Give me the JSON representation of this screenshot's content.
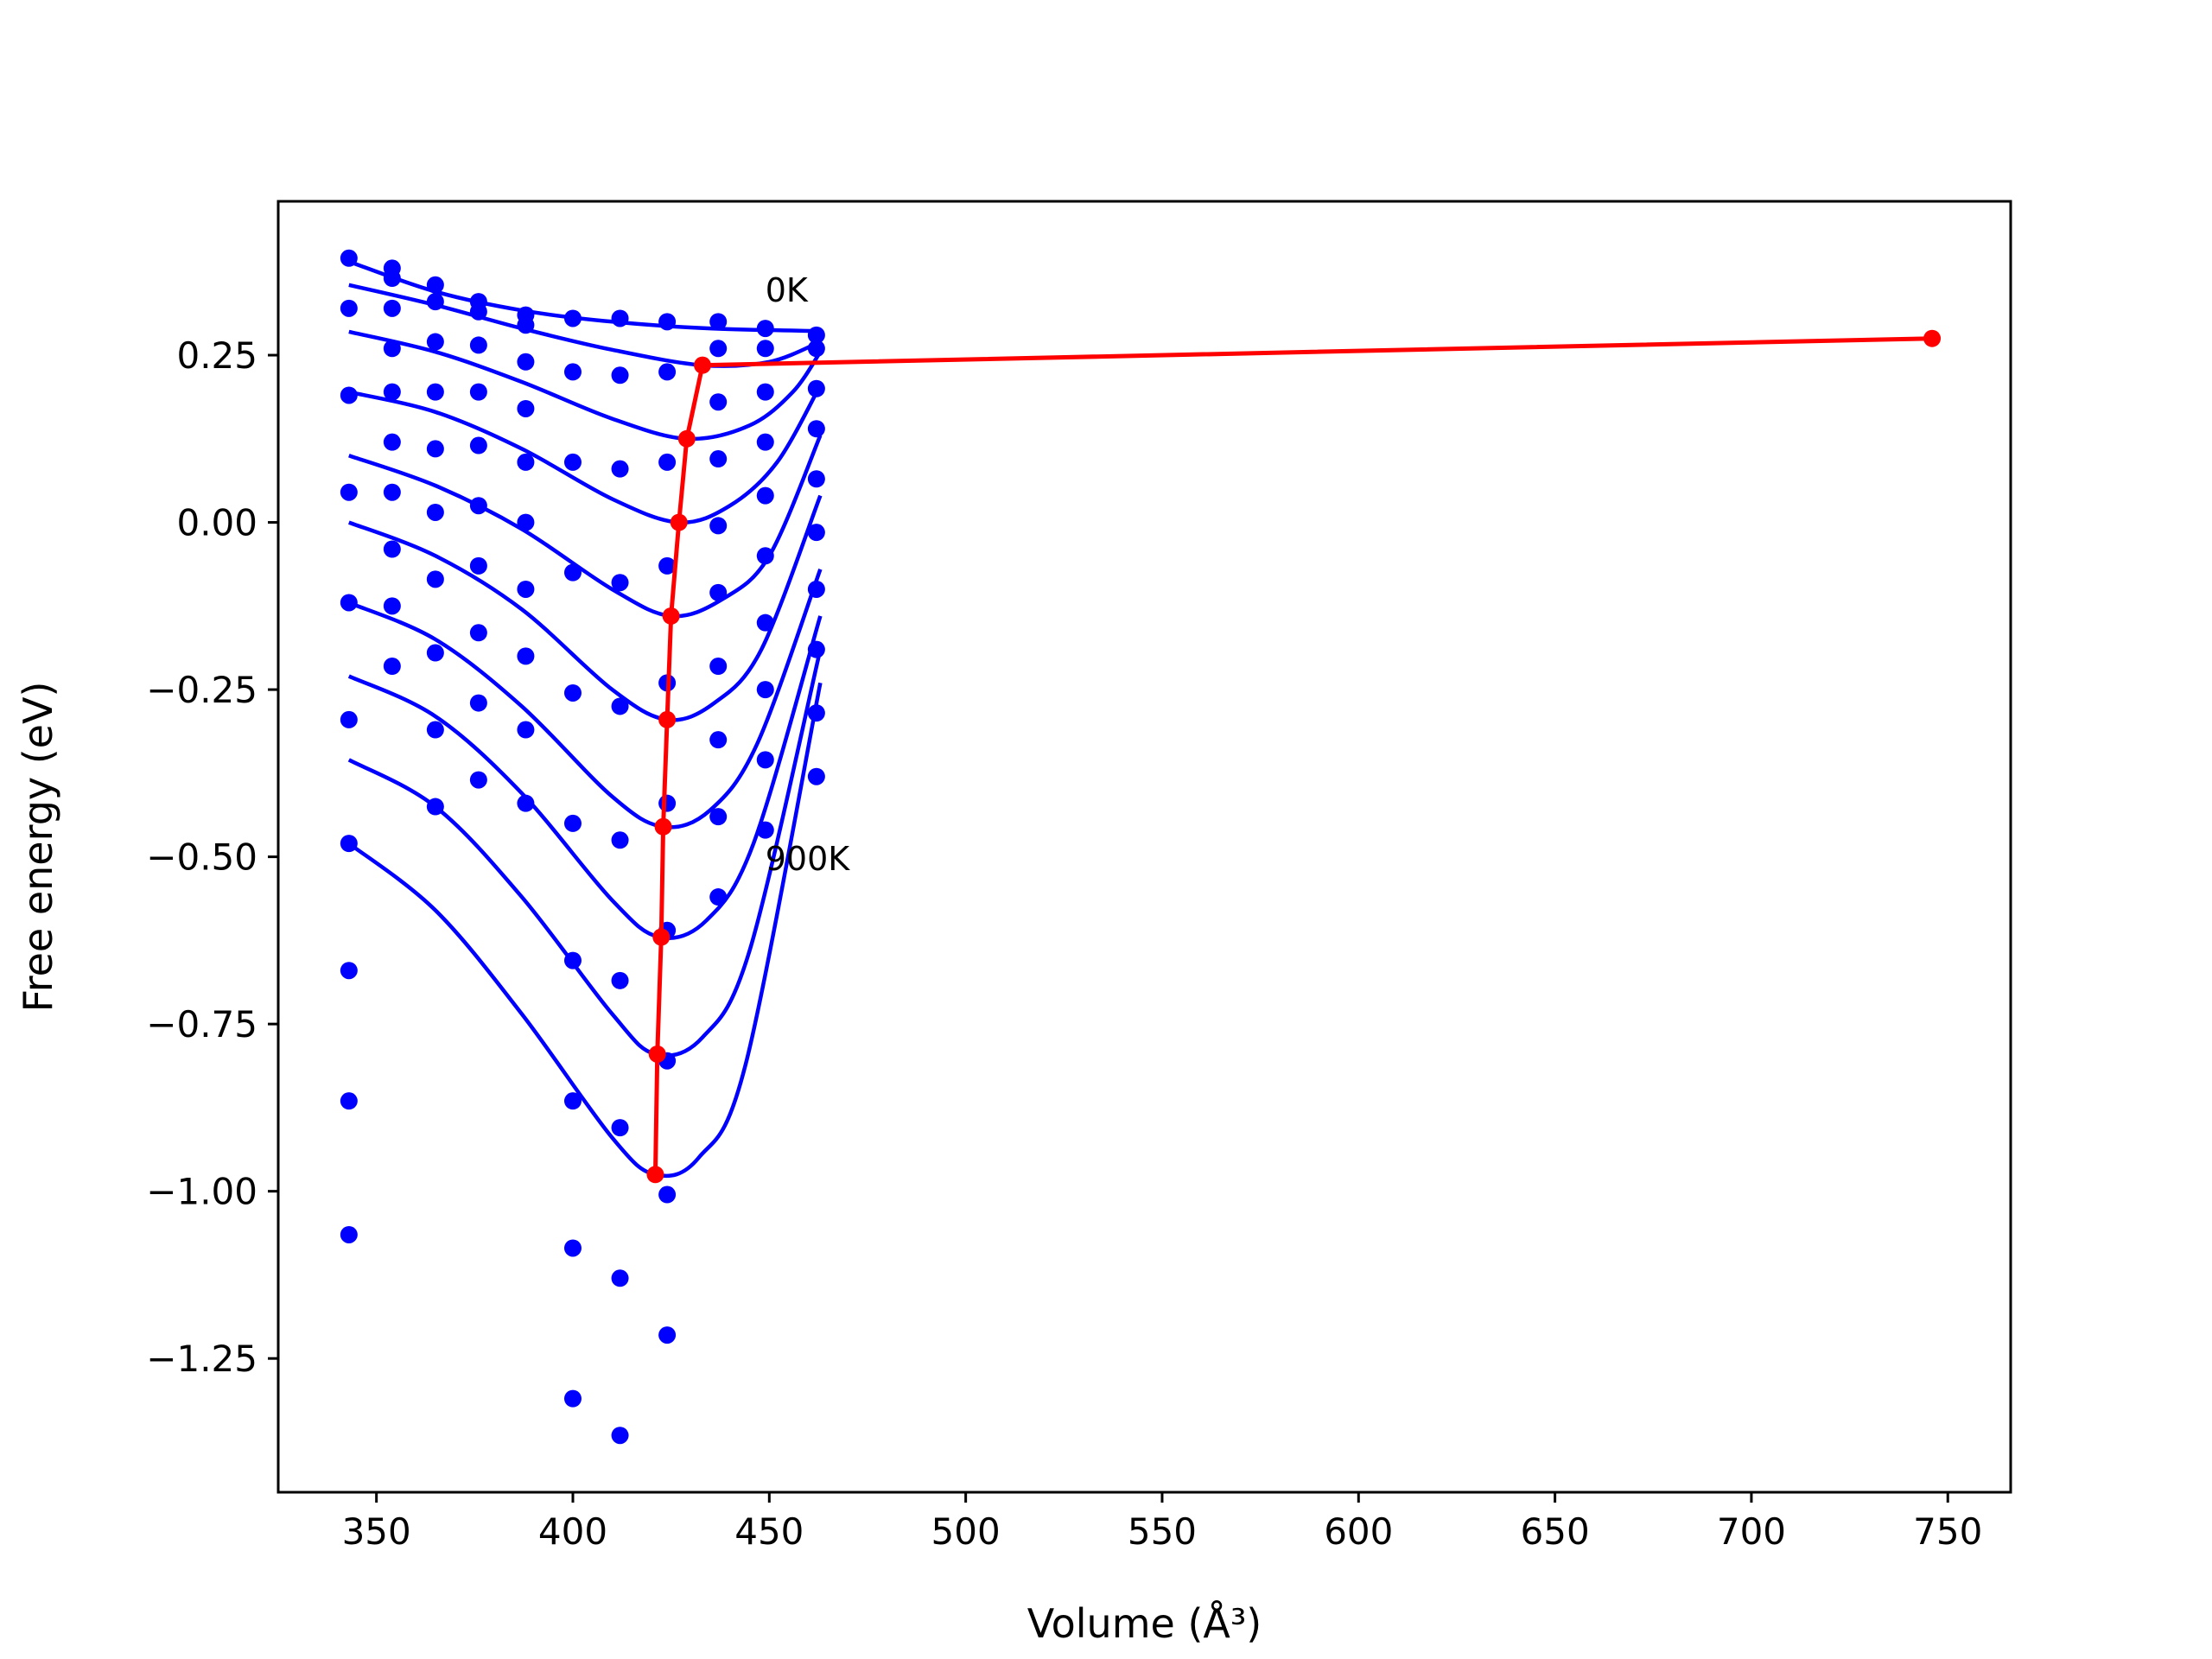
{
  "chart_data": {
    "type": "scatter",
    "title": "",
    "xlabel": "Volume (Å³)",
    "ylabel": "Free energy (eV)",
    "xlim": [
      325,
      766
    ],
    "ylim": [
      -1.45,
      0.48
    ],
    "xticks": [
      350,
      400,
      450,
      500,
      550,
      600,
      650,
      700,
      750
    ],
    "xtick_labels": [
      "350",
      "400",
      "450",
      "500",
      "550",
      "600",
      "650",
      "700",
      "750"
    ],
    "yticks": [
      0.25,
      0.0,
      -0.25,
      -0.5,
      -0.75,
      -1.0,
      -1.25
    ],
    "ytick_labels": [
      "0.25",
      "0.00",
      "−0.25",
      "−0.50",
      "−0.75",
      "−1.00",
      "−1.25"
    ],
    "grid": false,
    "colors": {
      "points": "#0000ff",
      "curves": "#0000ff",
      "equilibrium": "#ff0000"
    },
    "annotations": [
      {
        "text": "0K",
        "x": 449,
        "y": 0.33
      },
      {
        "text": "900K",
        "x": 449,
        "y": -0.52
      }
    ],
    "fit_curves": [
      [
        [
          343,
          0.39
        ],
        [
          365,
          0.345
        ],
        [
          387,
          0.317
        ],
        [
          410,
          0.3
        ],
        [
          435,
          0.29
        ],
        [
          463,
          0.286
        ]
      ],
      [
        [
          343,
          0.355
        ],
        [
          365,
          0.325
        ],
        [
          387,
          0.29
        ],
        [
          410,
          0.258
        ],
        [
          433,
          0.235
        ],
        [
          450,
          0.24
        ],
        [
          463,
          0.27
        ]
      ],
      [
        [
          343,
          0.285
        ],
        [
          365,
          0.255
        ],
        [
          387,
          0.21
        ],
        [
          410,
          0.155
        ],
        [
          429,
          0.125
        ],
        [
          445,
          0.145
        ],
        [
          456,
          0.195
        ],
        [
          463,
          0.255
        ]
      ],
      [
        [
          343,
          0.195
        ],
        [
          365,
          0.165
        ],
        [
          387,
          0.11
        ],
        [
          410,
          0.035
        ],
        [
          427,
          0.0
        ],
        [
          440,
          0.025
        ],
        [
          452,
          0.09
        ],
        [
          463,
          0.205
        ]
      ],
      [
        [
          343,
          0.1
        ],
        [
          365,
          0.055
        ],
        [
          387,
          -0.01
        ],
        [
          410,
          -0.1
        ],
        [
          425,
          -0.14
        ],
        [
          438,
          -0.115
        ],
        [
          450,
          -0.05
        ],
        [
          463,
          0.13
        ]
      ],
      [
        [
          343,
          0.0
        ],
        [
          365,
          -0.05
        ],
        [
          387,
          -0.13
        ],
        [
          410,
          -0.25
        ],
        [
          424,
          -0.295
        ],
        [
          436,
          -0.27
        ],
        [
          448,
          -0.19
        ],
        [
          463,
          0.04
        ]
      ],
      [
        [
          343,
          -0.12
        ],
        [
          365,
          -0.175
        ],
        [
          387,
          -0.275
        ],
        [
          410,
          -0.41
        ],
        [
          423,
          -0.455
        ],
        [
          435,
          -0.43
        ],
        [
          447,
          -0.33
        ],
        [
          463,
          -0.07
        ]
      ],
      [
        [
          343,
          -0.23
        ],
        [
          365,
          -0.29
        ],
        [
          387,
          -0.405
        ],
        [
          410,
          -0.565
        ],
        [
          422,
          -0.62
        ],
        [
          434,
          -0.595
        ],
        [
          446,
          -0.48
        ],
        [
          463,
          -0.14
        ]
      ],
      [
        [
          343,
          -0.355
        ],
        [
          365,
          -0.425
        ],
        [
          387,
          -0.56
        ],
        [
          410,
          -0.735
        ],
        [
          421,
          -0.795
        ],
        [
          433,
          -0.77
        ],
        [
          445,
          -0.64
        ],
        [
          463,
          -0.19
        ]
      ],
      [
        [
          343,
          -0.48
        ],
        [
          365,
          -0.58
        ],
        [
          387,
          -0.735
        ],
        [
          410,
          -0.92
        ],
        [
          421,
          -0.975
        ],
        [
          432,
          -0.95
        ],
        [
          444,
          -0.81
        ],
        [
          463,
          -0.24
        ]
      ]
    ],
    "points": [
      [
        343,
        0.395
      ],
      [
        343,
        0.32
      ],
      [
        343,
        0.19
      ],
      [
        343,
        0.045
      ],
      [
        343,
        -0.12
      ],
      [
        343,
        -0.295
      ],
      [
        343,
        -0.48
      ],
      [
        343,
        -0.67
      ],
      [
        343,
        -0.865
      ],
      [
        343,
        -1.065
      ],
      [
        354,
        0.38
      ],
      [
        354,
        0.365
      ],
      [
        354,
        0.32
      ],
      [
        354,
        0.26
      ],
      [
        354,
        0.195
      ],
      [
        354,
        0.12
      ],
      [
        354,
        0.045
      ],
      [
        354,
        -0.04
      ],
      [
        354,
        -0.125
      ],
      [
        354,
        -0.215
      ],
      [
        365,
        0.355
      ],
      [
        365,
        0.33
      ],
      [
        365,
        0.27
      ],
      [
        365,
        0.195
      ],
      [
        365,
        0.11
      ],
      [
        365,
        0.015
      ],
      [
        365,
        -0.085
      ],
      [
        365,
        -0.195
      ],
      [
        365,
        -0.31
      ],
      [
        365,
        -0.425
      ],
      [
        376,
        0.33
      ],
      [
        376,
        0.315
      ],
      [
        376,
        0.265
      ],
      [
        376,
        0.195
      ],
      [
        376,
        0.115
      ],
      [
        376,
        0.025
      ],
      [
        376,
        -0.065
      ],
      [
        376,
        -0.165
      ],
      [
        376,
        -0.27
      ],
      [
        376,
        -0.385
      ],
      [
        388,
        0.31
      ],
      [
        388,
        0.295
      ],
      [
        388,
        0.24
      ],
      [
        388,
        0.17
      ],
      [
        388,
        0.09
      ],
      [
        388,
        0.0
      ],
      [
        388,
        -0.1
      ],
      [
        388,
        -0.2
      ],
      [
        388,
        -0.31
      ],
      [
        388,
        -0.42
      ],
      [
        400,
        0.305
      ],
      [
        400,
        0.225
      ],
      [
        400,
        0.09
      ],
      [
        400,
        -0.075
      ],
      [
        400,
        -0.255
      ],
      [
        400,
        -0.45
      ],
      [
        400,
        -0.655
      ],
      [
        400,
        -0.865
      ],
      [
        400,
        -1.085
      ],
      [
        400,
        -1.31
      ],
      [
        412,
        0.305
      ],
      [
        412,
        0.22
      ],
      [
        412,
        0.08
      ],
      [
        412,
        -0.09
      ],
      [
        412,
        -0.275
      ],
      [
        412,
        -0.475
      ],
      [
        412,
        -0.685
      ],
      [
        412,
        -0.905
      ],
      [
        412,
        -1.13
      ],
      [
        412,
        -1.365
      ],
      [
        424,
        0.3
      ],
      [
        424,
        0.225
      ],
      [
        424,
        0.09
      ],
      [
        424,
        -0.065
      ],
      [
        424,
        -0.24
      ],
      [
        424,
        -0.42
      ],
      [
        424,
        -0.61
      ],
      [
        424,
        -0.805
      ],
      [
        424,
        -1.005
      ],
      [
        424,
        -1.215
      ],
      [
        437,
        0.3
      ],
      [
        437,
        0.26
      ],
      [
        437,
        0.18
      ],
      [
        437,
        0.095
      ],
      [
        437,
        -0.005
      ],
      [
        437,
        -0.105
      ],
      [
        437,
        -0.215
      ],
      [
        437,
        -0.325
      ],
      [
        437,
        -0.44
      ],
      [
        437,
        -0.56
      ],
      [
        449,
        0.29
      ],
      [
        449,
        0.26
      ],
      [
        449,
        0.195
      ],
      [
        449,
        0.12
      ],
      [
        449,
        0.04
      ],
      [
        449,
        -0.05
      ],
      [
        449,
        -0.15
      ],
      [
        449,
        -0.25
      ],
      [
        449,
        -0.355
      ],
      [
        449,
        -0.46
      ],
      [
        462,
        0.28
      ],
      [
        462,
        0.26
      ],
      [
        462,
        0.2
      ],
      [
        462,
        0.14
      ],
      [
        462,
        0.065
      ],
      [
        462,
        -0.015
      ],
      [
        462,
        -0.1
      ],
      [
        462,
        -0.19
      ],
      [
        462,
        -0.285
      ],
      [
        462,
        -0.38
      ]
    ],
    "equilibrium_line": [
      [
        421,
        -0.975
      ],
      [
        421.5,
        -0.795
      ],
      [
        422.5,
        -0.62
      ],
      [
        423,
        -0.455
      ],
      [
        424,
        -0.295
      ],
      [
        425,
        -0.14
      ],
      [
        427,
        0.0
      ],
      [
        429,
        0.125
      ],
      [
        433,
        0.235
      ],
      [
        746,
        0.275
      ]
    ]
  }
}
